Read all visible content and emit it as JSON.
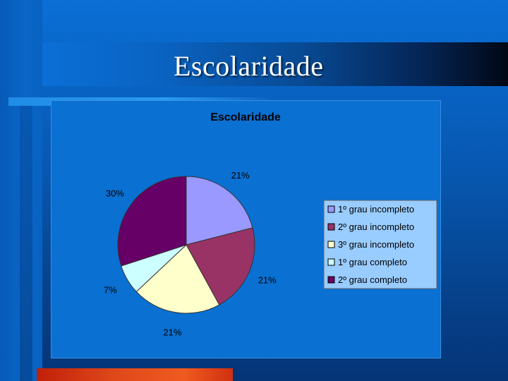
{
  "slide": {
    "title": "Escolaridade"
  },
  "chart_data": {
    "type": "pie",
    "title": "Escolaridade",
    "categories": [
      "1º grau incompleto",
      "2º grau incompleto",
      "3º grau incompleto",
      "1º grau completo",
      "2º grau completo"
    ],
    "values": [
      21,
      21,
      21,
      7,
      30
    ],
    "value_labels": [
      "21%",
      "21%",
      "21%",
      "7%",
      "30%"
    ],
    "colors": [
      "#9999ff",
      "#993366",
      "#ffffcc",
      "#ccffff",
      "#660066"
    ],
    "legend_position": "right"
  }
}
